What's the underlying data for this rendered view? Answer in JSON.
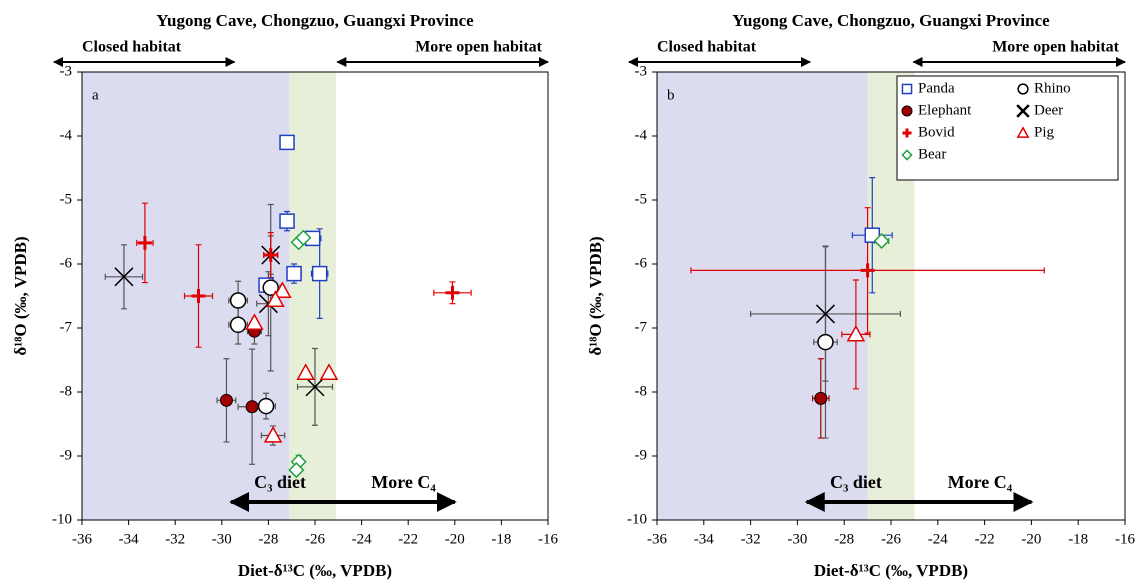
{
  "chart_data": [
    {
      "type": "scatter",
      "panel_label": "a",
      "title": "Yugong Cave, Chongzuo, Guangxi Province",
      "xlabel": "Diet-δ¹³C (‰, VPDB)",
      "ylabel": "δ¹⁸O (‰, VPDB)",
      "annotations": [
        "Closed habitat",
        "More open habitat",
        "C₃ diet",
        "More C₄"
      ],
      "xlim": [
        -36,
        -16
      ],
      "ylim": [
        -10,
        -3
      ],
      "xticks": [
        -36,
        -34,
        -32,
        -30,
        -28,
        -26,
        -24,
        -22,
        -20,
        -18,
        -16
      ],
      "yticks": [
        -10,
        -9,
        -8,
        -7,
        -6,
        -5,
        -4,
        -3
      ],
      "regions": [
        {
          "xlim": [
            -36,
            -27.1
          ],
          "color": "#dcdcf0"
        },
        {
          "xlim": [
            -27.1,
            -25.1
          ],
          "color": "#e7efd9"
        }
      ],
      "series": [
        {
          "name": "Panda",
          "marker": "square",
          "color": "#2040c0",
          "error_color": "#2040c0",
          "x": [
            -27.2,
            -27.2,
            -26.1,
            -26.9,
            -25.8,
            -28.1
          ],
          "y": [
            -4.1,
            -5.33,
            -5.6,
            -6.15,
            -6.15,
            -6.33
          ],
          "xerr": [
            null,
            0.2,
            0.35,
            0.3,
            0.35,
            0.2
          ],
          "yerr": [
            null,
            0.15,
            null,
            0.15,
            0.7,
            null
          ]
        },
        {
          "name": "Rhino",
          "marker": "circle",
          "color": "#000000",
          "error_color": "#555555",
          "x": [
            -29.3,
            -29.3,
            -27.9,
            -28.1
          ],
          "y": [
            -6.57,
            -6.95,
            -6.37,
            -8.22
          ],
          "xerr": [
            0.4,
            0.4,
            0.4,
            0.4
          ],
          "yerr": [
            0.3,
            0.3,
            1.3,
            0.2
          ]
        },
        {
          "name": "Elephant",
          "marker": "dot",
          "color": "#a00000",
          "error_color": "#555555",
          "x": [
            -29.8,
            -28.7,
            -28.6
          ],
          "y": [
            -8.13,
            -8.23,
            -7.05
          ],
          "xerr": [
            0.4,
            0.6,
            0.3
          ],
          "yerr": [
            0.65,
            0.9,
            0.2
          ]
        },
        {
          "name": "Deer",
          "marker": "x",
          "color": "#000000",
          "error_color": "#555555",
          "x": [
            -34.2,
            -27.9,
            -28.0,
            -26.0
          ],
          "y": [
            -6.2,
            -5.86,
            -6.62,
            -7.92
          ],
          "xerr": [
            0.8,
            0.3,
            0.5,
            0.75
          ],
          "yerr": [
            0.5,
            0.3,
            0.5,
            0.6
          ]
        },
        {
          "name": "Bovid",
          "marker": "plus",
          "color": "#e00000",
          "error_color": "#e00000",
          "x": [
            -33.3,
            -31.0,
            -27.9,
            -20.1
          ],
          "y": [
            -5.67,
            -6.5,
            -5.86,
            -6.45
          ],
          "xerr": [
            0.35,
            0.6,
            0.3,
            0.8
          ],
          "yerr": [
            0.62,
            0.8,
            0.35,
            0.17
          ]
        },
        {
          "name": "Pig",
          "marker": "triangle",
          "color": "#e00000",
          "error_color": "#555555",
          "x": [
            -28.6,
            -27.4,
            -27.7,
            -27.8,
            -26.4,
            -25.4
          ],
          "y": [
            -6.92,
            -6.42,
            -6.56,
            -8.68,
            -7.7,
            -7.7
          ],
          "xerr": [
            null,
            null,
            null,
            0.5,
            null,
            null
          ],
          "yerr": [
            null,
            null,
            null,
            0.15,
            null,
            null
          ]
        },
        {
          "name": "Bear",
          "marker": "diamond",
          "color": "#20a040",
          "error_color": "#20a040",
          "x": [
            -26.7,
            -26.5,
            -26.7,
            -26.8
          ],
          "y": [
            -5.66,
            -5.59,
            -9.09,
            -9.22
          ],
          "yerr": [
            null,
            null,
            0.1,
            null
          ]
        }
      ]
    },
    {
      "type": "scatter",
      "panel_label": "b",
      "title": "Yugong Cave, Chongzuo, Guangxi Province",
      "xlabel": "Diet-δ¹³C (‰, VPDB)",
      "ylabel": "δ¹⁸O (‰, VPDB)",
      "annotations": [
        "Closed habitat",
        "More open habitat",
        "C₃ diet",
        "More C₄"
      ],
      "xlim": [
        -36,
        -16
      ],
      "ylim": [
        -10,
        -3
      ],
      "xticks": [
        -36,
        -34,
        -32,
        -30,
        -28,
        -26,
        -24,
        -22,
        -20,
        -18,
        -16
      ],
      "yticks": [
        -10,
        -9,
        -8,
        -7,
        -6,
        -5,
        -4,
        -3
      ],
      "legend": "upper right",
      "regions": [
        {
          "xlim": [
            -36,
            -27
          ],
          "color": "#dcdcf0"
        },
        {
          "xlim": [
            -27,
            -25
          ],
          "color": "#e7efd9"
        }
      ],
      "series": [
        {
          "name": "Panda",
          "marker": "square",
          "color": "#2040c0",
          "error_color": "#2040c0",
          "x": [
            -26.8
          ],
          "y": [
            -5.55
          ],
          "xerr": [
            0.85
          ],
          "yerr": [
            0.9
          ]
        },
        {
          "name": "Rhino",
          "marker": "circle",
          "color": "#000000",
          "error_color": "#555555",
          "x": [
            -28.8
          ],
          "y": [
            -7.22
          ],
          "xerr": [
            0.5
          ],
          "yerr": [
            1.5
          ]
        },
        {
          "name": "Elephant",
          "marker": "dot",
          "color": "#a00000",
          "error_color": "#a00000",
          "x": [
            -29.0
          ],
          "y": [
            -8.1
          ],
          "xerr": [
            0.35
          ],
          "yerr": [
            0.62
          ]
        },
        {
          "name": "Deer",
          "marker": "x",
          "color": "#000000",
          "error_color": "#555555",
          "x": [
            -28.8
          ],
          "y": [
            -6.78
          ],
          "xerr": [
            3.2
          ],
          "yerr": [
            1.05
          ]
        },
        {
          "name": "Bovid",
          "marker": "plus",
          "color": "#e00000",
          "error_color": "#e00000",
          "x": [
            -27.0
          ],
          "y": [
            -6.1
          ],
          "xerr": [
            7.55
          ],
          "yerr": [
            0.98
          ]
        },
        {
          "name": "Pig",
          "marker": "triangle",
          "color": "#e00000",
          "error_color": "#e00000",
          "x": [
            -27.5
          ],
          "y": [
            -7.1
          ],
          "xerr": [
            0.6
          ],
          "yerr": [
            0.85
          ]
        },
        {
          "name": "Bear",
          "marker": "diamond",
          "color": "#20a040",
          "error_color": "#20a040",
          "x": [
            -26.4
          ],
          "y": [
            -5.64
          ],
          "xerr": [
            0.3
          ]
        }
      ]
    }
  ]
}
